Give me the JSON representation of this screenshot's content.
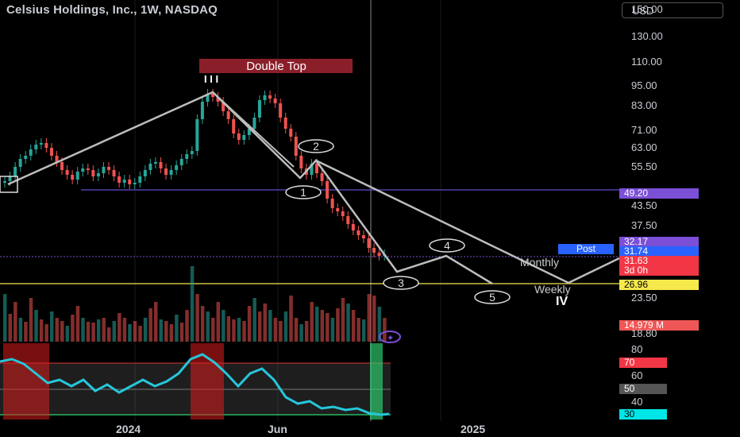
{
  "header": {
    "title": "Celsius Holdings, Inc., 1W, NASDAQ",
    "currency": "USD"
  },
  "annotations": {
    "pattern_label": "Double Top",
    "wave_labels": [
      "1",
      "2",
      "3",
      "4",
      "5"
    ],
    "monthly": "Monthly",
    "weekly": "Weekly",
    "wave_iv": "IV"
  },
  "price_axis_ticks": [
    "150.00",
    "130.00",
    "110.00",
    "95.00",
    "83.00",
    "71.00",
    "63.00",
    "55.50",
    "49.20",
    "43.50",
    "37.50",
    "32.17",
    "31.74",
    "31.63",
    "3d 0h",
    "26.96",
    "23.50",
    "14.979 M",
    "18.80"
  ],
  "price_badges": [
    {
      "label": "49.20",
      "color": "#7b4fd6"
    },
    {
      "label": "32.17",
      "color": "#7b4fd6"
    },
    {
      "label": "31.74",
      "color": "#2962ff"
    },
    {
      "label": "Post",
      "color": "#2962ff"
    },
    {
      "label": "31.63",
      "color": "#f23645"
    },
    {
      "label": "3d 0h",
      "color": "#f23645"
    },
    {
      "label": "26.96",
      "color": "#f5e94b"
    },
    {
      "label": "14.979 M",
      "color": "#f05656"
    }
  ],
  "oscillator_ticks": [
    "80",
    "70",
    "60",
    "50",
    "40",
    "30"
  ],
  "x_axis_labels": [
    "2024",
    "Jun",
    "2025"
  ],
  "colors": {
    "up": "#26a69a",
    "down": "#ef5350",
    "oscillator": "#26c6da",
    "support": "#5c4ccf",
    "neckline": "#f5e94b"
  },
  "chart_data": {
    "type": "candlestick",
    "title": "Celsius Holdings, Inc., 1W, NASDAQ",
    "price_scale": "log",
    "ylim": [
      18.8,
      150
    ],
    "horizontal_levels": [
      49.2,
      26.96
    ],
    "last_price": 31.63,
    "post_market": 31.74,
    "volume_last": "14.979M",
    "double_top_peaks": [
      95.0,
      97.0
    ],
    "projected_path": [
      58,
      27.5,
      31.5,
      26.96
    ],
    "oscillator": {
      "levels": [
        70,
        50,
        30
      ],
      "last": 30
    }
  }
}
